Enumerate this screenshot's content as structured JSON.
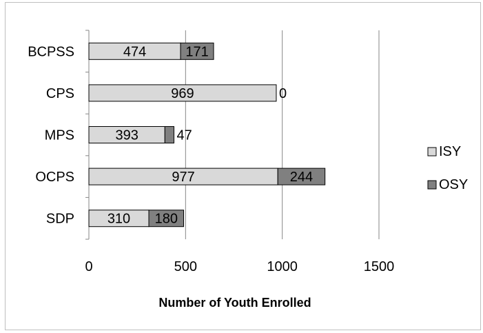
{
  "chart_data": {
    "type": "bar",
    "orientation": "horizontal",
    "stacked": true,
    "categories": [
      "BCPSS",
      "CPS",
      "MPS",
      "OCPS",
      "SDP"
    ],
    "series": [
      {
        "name": "ISY",
        "values": [
          474,
          969,
          393,
          977,
          310
        ],
        "color": "#d9d9d9"
      },
      {
        "name": "OSY",
        "values": [
          171,
          0,
          47,
          244,
          180
        ],
        "color": "#808080"
      }
    ],
    "value_labels": {
      "ISY": [
        "474",
        "969",
        "393",
        "977",
        "310"
      ],
      "OSY": [
        "171",
        "0",
        "47",
        "244",
        "180"
      ]
    },
    "xlabel": "Number of Youth Enrolled",
    "xlim": [
      0,
      1500
    ],
    "xticks": [
      "0",
      "500",
      "1000",
      "1500"
    ],
    "xtick_values": [
      0,
      500,
      1000,
      1500
    ],
    "grid": true,
    "legend_position": "right"
  }
}
